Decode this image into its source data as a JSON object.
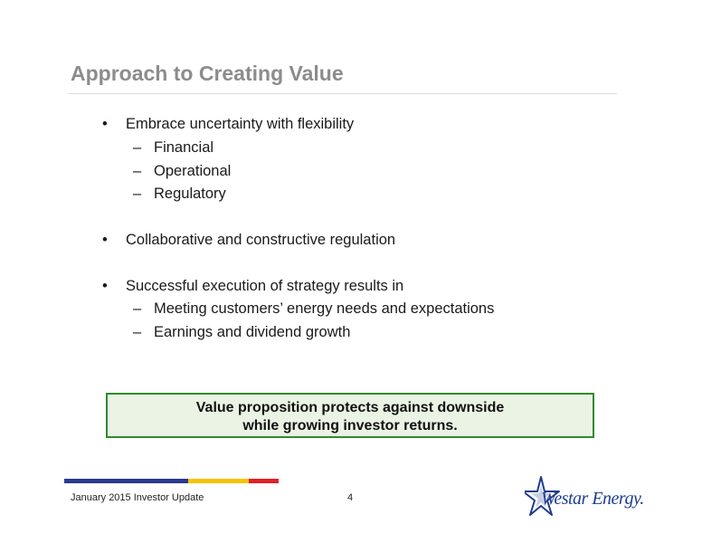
{
  "slide": {
    "title": "Approach to Creating Value",
    "bullets": [
      {
        "marker": "•",
        "text": "Embrace uncertainty with flexibility",
        "subs": [
          {
            "marker": "–",
            "text": "Financial"
          },
          {
            "marker": "–",
            "text": "Operational"
          },
          {
            "marker": "–",
            "text": "Regulatory"
          }
        ]
      },
      {
        "marker": "•",
        "text": "Collaborative and constructive regulation",
        "subs": []
      },
      {
        "marker": "•",
        "text": "Successful execution of strategy results in",
        "subs": [
          {
            "marker": "–",
            "text": "Meeting customers’ energy needs and expectations"
          },
          {
            "marker": "–",
            "text": "Earnings and dividend growth"
          }
        ]
      }
    ],
    "callout": {
      "line1": "Value proposition protects against downside",
      "line2": "while growing investor returns."
    }
  },
  "footer": {
    "text": "January 2015 Investor Update",
    "page_number": "4",
    "logo_text": "Westar Energy.",
    "bar_colors": [
      "#2b3990",
      "#f2c500",
      "#e0202a"
    ]
  },
  "colors": {
    "title": "#8c8c8c",
    "callout_border": "#2e8b2e",
    "callout_fill": "#ebf3e4",
    "logo_blue": "#1f3c8f"
  }
}
